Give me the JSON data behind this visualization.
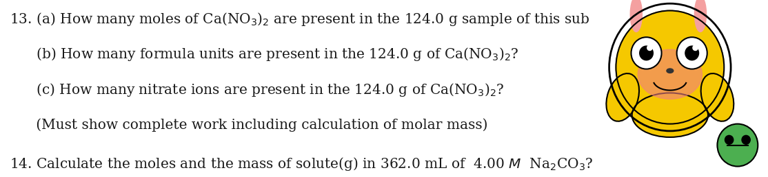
{
  "bg_color": "#ffffff",
  "text_color": "#1a1a1a",
  "line1": "13. (a) How many moles of Ca(NO",
  "line1_sub": "3",
  "line1_rest": ")",
  "line1_sup": "2",
  "line1_end": " are present in the 124.0 g sample of this sub",
  "line2": "      (b) How many formula units are present in the 124.0 g of Ca(NO",
  "line2_sub": "3",
  "line2_rest": ")",
  "line2_sup": "2",
  "line2_end": "?",
  "line3": "      (c) How many nitrate ions are present in the 124.0 g of Ca(NO",
  "line3_sub": "3",
  "line3_rest": ")",
  "line3_sup": "2",
  "line3_end": "?",
  "line4": "      (Must show complete work including calculation of molar mass)",
  "line5": "14. Calculate the moles and the mass of solute(g) in 362.0 mL of  4.00 ",
  "line5_italic": "M",
  "line5_end": " Na",
  "line5_sub2": "2",
  "line5_rest2": "CO",
  "line5_sub3": "3",
  "line5_end2": "?",
  "fontsize": 14.5,
  "figsize": [
    11.14,
    2.58
  ],
  "dpi": 100
}
